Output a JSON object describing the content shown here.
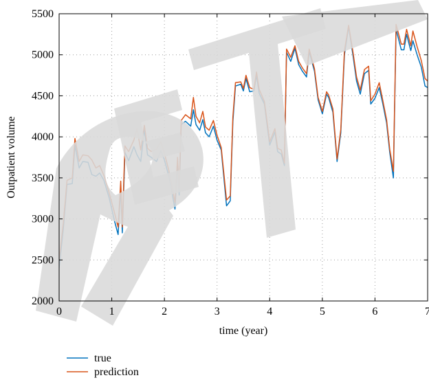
{
  "chart_data": {
    "type": "line",
    "xlabel": "time (year)",
    "ylabel": "Outpatient volume",
    "xlim": [
      0,
      7
    ],
    "ylim": [
      2000,
      5500
    ],
    "xticks": [
      0,
      1,
      2,
      3,
      4,
      5,
      6,
      7
    ],
    "yticks": [
      2000,
      2500,
      3000,
      3500,
      4000,
      4500,
      5000,
      5500
    ],
    "grid": true,
    "legend_placement": "bottom-left, below plot",
    "watermark_text": "RETRACTED",
    "series": [
      {
        "name": "true",
        "color": "#0072bd",
        "points": [
          [
            0,
            2400
          ],
          [
            0.08,
            2880
          ],
          [
            0.15,
            3420
          ],
          [
            0.25,
            3430
          ],
          [
            0.3,
            3900
          ],
          [
            0.38,
            3620
          ],
          [
            0.45,
            3700
          ],
          [
            0.55,
            3690
          ],
          [
            0.62,
            3540
          ],
          [
            0.7,
            3520
          ],
          [
            0.77,
            3560
          ],
          [
            0.85,
            3470
          ],
          [
            0.95,
            3260
          ],
          [
            1.05,
            2980
          ],
          [
            1.12,
            2810
          ],
          [
            1.17,
            3380
          ],
          [
            1.2,
            2830
          ],
          [
            1.25,
            3810
          ],
          [
            1.32,
            3710
          ],
          [
            1.42,
            3880
          ],
          [
            1.48,
            3780
          ],
          [
            1.55,
            3700
          ],
          [
            1.62,
            4090
          ],
          [
            1.68,
            3780
          ],
          [
            1.75,
            3750
          ],
          [
            1.85,
            3700
          ],
          [
            1.93,
            3830
          ],
          [
            2.0,
            3720
          ],
          [
            2.08,
            3530
          ],
          [
            2.15,
            3300
          ],
          [
            2.2,
            3120
          ],
          [
            2.25,
            3670
          ],
          [
            2.28,
            3290
          ],
          [
            2.32,
            4150
          ],
          [
            2.4,
            4190
          ],
          [
            2.5,
            4130
          ],
          [
            2.55,
            4330
          ],
          [
            2.6,
            4150
          ],
          [
            2.67,
            4080
          ],
          [
            2.73,
            4210
          ],
          [
            2.78,
            4050
          ],
          [
            2.85,
            4000
          ],
          [
            2.93,
            4130
          ],
          [
            3.0,
            3960
          ],
          [
            3.08,
            3840
          ],
          [
            3.18,
            3160
          ],
          [
            3.25,
            3220
          ],
          [
            3.3,
            4180
          ],
          [
            3.35,
            4620
          ],
          [
            3.45,
            4640
          ],
          [
            3.5,
            4560
          ],
          [
            3.55,
            4710
          ],
          [
            3.62,
            4550
          ],
          [
            3.7,
            4560
          ],
          [
            3.75,
            4750
          ],
          [
            3.8,
            4530
          ],
          [
            3.9,
            4400
          ],
          [
            4.0,
            3900
          ],
          [
            4.1,
            4060
          ],
          [
            4.15,
            3820
          ],
          [
            4.22,
            3790
          ],
          [
            4.28,
            3650
          ],
          [
            4.32,
            5030
          ],
          [
            4.4,
            4920
          ],
          [
            4.48,
            5080
          ],
          [
            4.55,
            4880
          ],
          [
            4.62,
            4800
          ],
          [
            4.7,
            4730
          ],
          [
            4.75,
            5040
          ],
          [
            4.85,
            4800
          ],
          [
            4.92,
            4450
          ],
          [
            5.0,
            4280
          ],
          [
            5.08,
            4520
          ],
          [
            5.12,
            4480
          ],
          [
            5.2,
            4300
          ],
          [
            5.28,
            3700
          ],
          [
            5.35,
            4050
          ],
          [
            5.42,
            5000
          ],
          [
            5.5,
            5340
          ],
          [
            5.58,
            5000
          ],
          [
            5.65,
            4680
          ],
          [
            5.72,
            4520
          ],
          [
            5.8,
            4770
          ],
          [
            5.88,
            4810
          ],
          [
            5.92,
            4400
          ],
          [
            6.0,
            4470
          ],
          [
            6.08,
            4600
          ],
          [
            6.15,
            4400
          ],
          [
            6.22,
            4170
          ],
          [
            6.28,
            3810
          ],
          [
            6.35,
            3500
          ],
          [
            6.4,
            5310
          ],
          [
            6.5,
            5060
          ],
          [
            6.55,
            5060
          ],
          [
            6.6,
            5250
          ],
          [
            6.68,
            5050
          ],
          [
            6.72,
            5170
          ],
          [
            6.8,
            5000
          ],
          [
            6.88,
            4850
          ],
          [
            6.95,
            4620
          ],
          [
            7.0,
            4600
          ]
        ]
      },
      {
        "name": "prediction",
        "color": "#d95319",
        "points": [
          [
            0,
            2500
          ],
          [
            0.08,
            2950
          ],
          [
            0.15,
            3470
          ],
          [
            0.25,
            3500
          ],
          [
            0.3,
            3980
          ],
          [
            0.38,
            3700
          ],
          [
            0.45,
            3780
          ],
          [
            0.55,
            3770
          ],
          [
            0.62,
            3720
          ],
          [
            0.7,
            3620
          ],
          [
            0.77,
            3650
          ],
          [
            0.85,
            3530
          ],
          [
            0.95,
            3320
          ],
          [
            1.05,
            3080
          ],
          [
            1.12,
            2900
          ],
          [
            1.17,
            3460
          ],
          [
            1.2,
            2900
          ],
          [
            1.25,
            3890
          ],
          [
            1.32,
            3820
          ],
          [
            1.42,
            3960
          ],
          [
            1.48,
            4100
          ],
          [
            1.55,
            3840
          ],
          [
            1.62,
            4140
          ],
          [
            1.68,
            3860
          ],
          [
            1.75,
            3820
          ],
          [
            1.85,
            3850
          ],
          [
            1.93,
            3940
          ],
          [
            2.0,
            3800
          ],
          [
            2.08,
            3600
          ],
          [
            2.15,
            3380
          ],
          [
            2.2,
            3200
          ],
          [
            2.25,
            3750
          ],
          [
            2.28,
            3380
          ],
          [
            2.32,
            4200
          ],
          [
            2.4,
            4270
          ],
          [
            2.5,
            4220
          ],
          [
            2.55,
            4480
          ],
          [
            2.6,
            4250
          ],
          [
            2.67,
            4170
          ],
          [
            2.73,
            4310
          ],
          [
            2.78,
            4120
          ],
          [
            2.85,
            4080
          ],
          [
            2.93,
            4200
          ],
          [
            3.0,
            4020
          ],
          [
            3.08,
            3870
          ],
          [
            3.18,
            3230
          ],
          [
            3.25,
            3280
          ],
          [
            3.3,
            4240
          ],
          [
            3.35,
            4660
          ],
          [
            3.45,
            4670
          ],
          [
            3.5,
            4590
          ],
          [
            3.55,
            4750
          ],
          [
            3.62,
            4600
          ],
          [
            3.7,
            4580
          ],
          [
            3.75,
            4790
          ],
          [
            3.8,
            4580
          ],
          [
            3.9,
            4430
          ],
          [
            4.0,
            3940
          ],
          [
            4.1,
            4100
          ],
          [
            4.15,
            3860
          ],
          [
            4.22,
            3840
          ],
          [
            4.28,
            3680
          ],
          [
            4.32,
            5070
          ],
          [
            4.4,
            4970
          ],
          [
            4.48,
            5110
          ],
          [
            4.55,
            4920
          ],
          [
            4.62,
            4840
          ],
          [
            4.7,
            4770
          ],
          [
            4.75,
            5070
          ],
          [
            4.85,
            4830
          ],
          [
            4.92,
            4480
          ],
          [
            5.0,
            4310
          ],
          [
            5.08,
            4550
          ],
          [
            5.12,
            4510
          ],
          [
            5.2,
            4340
          ],
          [
            5.28,
            3730
          ],
          [
            5.35,
            4090
          ],
          [
            5.42,
            5050
          ],
          [
            5.5,
            5360
          ],
          [
            5.58,
            5040
          ],
          [
            5.65,
            4730
          ],
          [
            5.72,
            4570
          ],
          [
            5.8,
            4820
          ],
          [
            5.88,
            4860
          ],
          [
            5.92,
            4440
          ],
          [
            6.0,
            4520
          ],
          [
            6.08,
            4660
          ],
          [
            6.15,
            4440
          ],
          [
            6.22,
            4210
          ],
          [
            6.28,
            3850
          ],
          [
            6.35,
            3580
          ],
          [
            6.4,
            5370
          ],
          [
            6.5,
            5130
          ],
          [
            6.55,
            5130
          ],
          [
            6.6,
            5310
          ],
          [
            6.68,
            5110
          ],
          [
            6.72,
            5290
          ],
          [
            6.8,
            5100
          ],
          [
            6.88,
            4930
          ],
          [
            6.95,
            4710
          ],
          [
            7.0,
            4680
          ]
        ]
      }
    ]
  }
}
